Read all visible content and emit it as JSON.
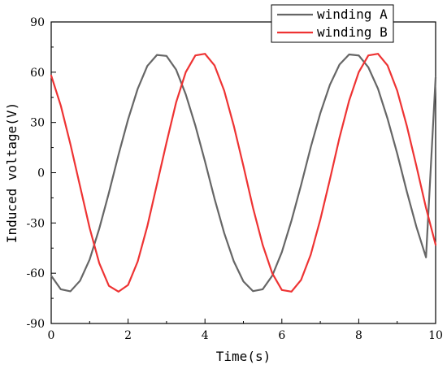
{
  "chart_data": {
    "type": "line",
    "xlabel": "Time(s)",
    "ylabel": "Induced voltage(V)",
    "xlim": [
      0,
      10
    ],
    "ylim": [
      -90,
      90
    ],
    "xticks": [
      "0",
      "2",
      "4",
      "6",
      "8",
      "10"
    ],
    "yticks": [
      "90",
      "60",
      "30",
      "0",
      "-30",
      "-60",
      "-90"
    ],
    "grid": false,
    "legend_position": "top-right",
    "series": [
      {
        "name": "winding A",
        "color": "#666666",
        "x": [
          0,
          0.25,
          0.5,
          0.75,
          1,
          1.25,
          1.5,
          1.75,
          2,
          2.25,
          2.5,
          2.75,
          3,
          3.25,
          3.5,
          3.75,
          4,
          4.25,
          4.5,
          4.75,
          5,
          5.25,
          5.5,
          5.75,
          6,
          6.25,
          6.5,
          6.75,
          7,
          7.25,
          7.5,
          7.75,
          8,
          8.25,
          8.5,
          8.75,
          9,
          9.25,
          9.5,
          9.75,
          10
        ],
        "y": [
          -61.5,
          -69.6,
          -70.8,
          -64.5,
          -51.8,
          -33.4,
          -12.1,
          10.6,
          31.8,
          50.1,
          63.7,
          70.3,
          69.7,
          61.5,
          46.8,
          28.1,
          6.8,
          -15.6,
          -36.0,
          -52.9,
          -64.9,
          -70.7,
          -69.6,
          -61.5,
          -47.4,
          -28.6,
          -7.4,
          15.1,
          35.5,
          52.5,
          64.6,
          70.6,
          70.0,
          62.9,
          50.2,
          32.2,
          11.5,
          -11.2,
          -32.3,
          -50.5,
          57.0
        ]
      },
      {
        "name": "winding B",
        "color": "#ee3333",
        "x": [
          0,
          0.25,
          0.5,
          0.75,
          1,
          1.25,
          1.5,
          1.75,
          2,
          2.25,
          2.5,
          2.75,
          3,
          3.25,
          3.5,
          3.75,
          4,
          4.25,
          4.5,
          4.75,
          5,
          5.25,
          5.5,
          5.75,
          6,
          6.25,
          6.5,
          6.75,
          7,
          7.25,
          7.5,
          7.75,
          8,
          8.25,
          8.5,
          8.75,
          9,
          9.25,
          9.5,
          9.75,
          10
        ],
        "y": [
          58.0,
          40.0,
          17.0,
          -8.0,
          -33.0,
          -54.0,
          -67.5,
          -71.0,
          -67.0,
          -53.0,
          -32.0,
          -7.0,
          18.0,
          42.0,
          60.0,
          70.0,
          71.0,
          64.0,
          49.0,
          28.0,
          4.0,
          -21.0,
          -43.0,
          -60.0,
          -70.0,
          -71.0,
          -64.0,
          -49.0,
          -28.0,
          -4.0,
          21.0,
          43.0,
          60.0,
          70.0,
          71.0,
          64.0,
          49.0,
          28.0,
          4.0,
          -21.0,
          -43.0
        ]
      }
    ]
  }
}
